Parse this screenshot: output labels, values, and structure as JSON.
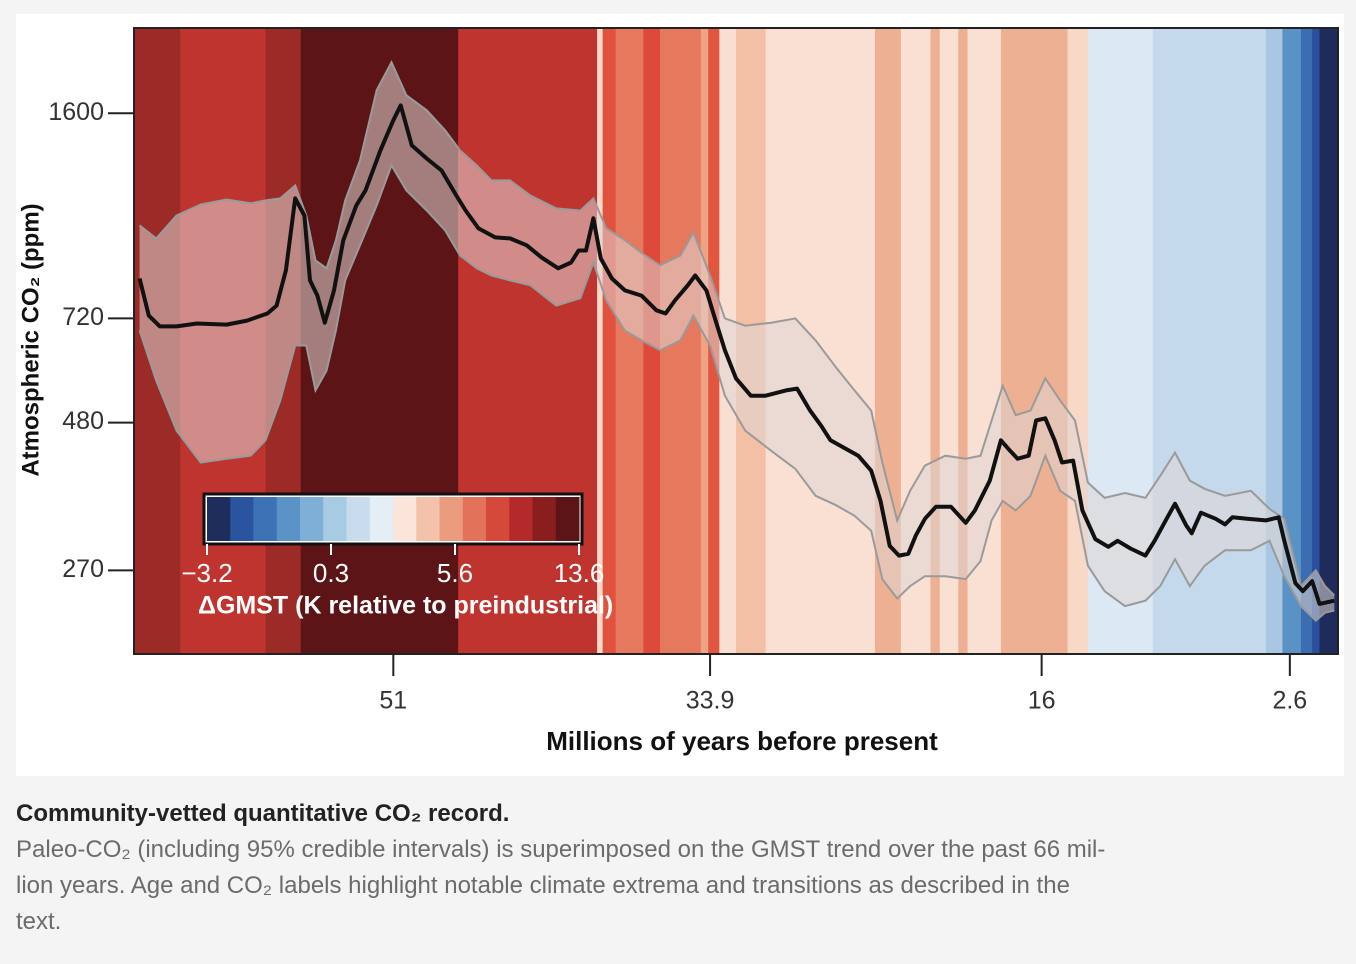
{
  "chart_data": {
    "type": "line",
    "ylabel": "Atmospheric CO₂ (ppm)",
    "xlabel": "Millions of years before present",
    "xlim": [
      65,
      0
    ],
    "xticks": [
      51,
      33.9,
      16,
      2.6
    ],
    "ylim": [
      195,
      2230
    ],
    "yticks": [
      1600,
      720,
      480,
      270
    ],
    "ylog": true,
    "color": "#111111",
    "x": [
      64.7,
      64.2,
      63.6,
      62.7,
      61.6,
      60.0,
      58.9,
      57.8,
      57.3,
      56.8,
      56.3,
      55.8,
      55.5,
      55.1,
      54.7,
      54.2,
      53.7,
      53.0,
      52.5,
      51.7,
      51.0,
      50.6,
      50.0,
      49.2,
      48.4,
      47.6,
      47.1,
      46.4,
      45.5,
      44.7,
      43.8,
      43.0,
      42.1,
      41.4,
      41.0,
      40.6,
      40.2,
      39.8,
      39.2,
      38.5,
      37.6,
      36.8,
      36.3,
      35.8,
      35.1,
      34.7,
      34.1,
      33.6,
      33.1,
      32.5,
      31.7,
      30.9,
      29.8,
      29.2,
      28.5,
      27.9,
      27.4,
      26.6,
      25.9,
      25.2,
      24.7,
      24.2,
      23.7,
      23.2,
      22.8,
      22.3,
      21.7,
      20.9,
      20.1,
      19.6,
      18.8,
      18.2,
      17.7,
      17.3,
      16.7,
      16.3,
      15.8,
      15.3,
      14.9,
      14.3,
      13.8,
      13.1,
      12.4,
      11.9,
      11.2,
      10.4,
      9.9,
      9.3,
      8.8,
      8.2,
      7.9,
      7.4,
      6.6,
      6.1,
      5.7,
      4.9,
      3.9,
      3.2,
      2.9,
      2.3,
      1.9,
      1.4,
      1.0,
      0.2
    ],
    "values": [
      841,
      728,
      698,
      698,
      706,
      703,
      714,
      734,
      757,
      868,
      1149,
      1075,
      835,
      787,
      708,
      803,
      976,
      1118,
      1185,
      1385,
      1557,
      1650,
      1412,
      1342,
      1281,
      1162,
      1096,
      1022,
      987,
      983,
      957,
      913,
      875,
      895,
      938,
      938,
      1063,
      909,
      841,
      803,
      787,
      743,
      734,
      772,
      819,
      851,
      803,
      714,
      636,
      570,
      533,
      533,
      544,
      548,
      503,
      474,
      448,
      434,
      422,
      398,
      354,
      297,
      286,
      288,
      309,
      330,
      346,
      346,
      325,
      341,
      383,
      448,
      430,
      417,
      422,
      484,
      488,
      448,
      411,
      414,
      341,
      305,
      296,
      303,
      294,
      286,
      303,
      328,
      350,
      322,
      312,
      338,
      330,
      323,
      332,
      330,
      328,
      332,
      303,
      257,
      249,
      259,
      237,
      240
    ],
    "band": {
      "fill": "rgba(222,214,212,0.55)",
      "edge": "#9a9a9a",
      "x": [
        64.7,
        63.8,
        62.7,
        61.4,
        60.0,
        58.7,
        57.9,
        57.1,
        56.3,
        55.7,
        55.2,
        54.6,
        54.1,
        53.6,
        52.8,
        51.9,
        51.1,
        50.3,
        49.2,
        48.2,
        47.4,
        46.5,
        45.7,
        44.7,
        43.6,
        42.2,
        40.9,
        40.2,
        39.5,
        38.5,
        37.4,
        36.6,
        35.5,
        34.8,
        33.9,
        33.1,
        32.0,
        30.6,
        29.3,
        28.2,
        27.1,
        26.1,
        25.2,
        24.6,
        23.8,
        23.1,
        22.3,
        21.2,
        20.1,
        19.3,
        18.7,
        18.1,
        17.4,
        16.6,
        15.8,
        15.0,
        14.2,
        13.5,
        12.6,
        11.5,
        10.4,
        9.6,
        8.8,
        8.0,
        7.2,
        6.1,
        4.7,
        3.7,
        2.9,
        2.0,
        1.2,
        0.7,
        0.2
      ],
      "upper": [
        1034,
        983,
        1075,
        1122,
        1144,
        1127,
        1140,
        1149,
        1208,
        1075,
        902,
        875,
        976,
        1140,
        1332,
        1751,
        1951,
        1717,
        1619,
        1497,
        1385,
        1306,
        1232,
        1232,
        1162,
        1105,
        1096,
        1149,
        1022,
        976,
        920,
        885,
        920,
        1006,
        851,
        720,
        700,
        708,
        720,
        661,
        595,
        544,
        503,
        411,
        328,
        368,
        406,
        422,
        417,
        422,
        484,
        554,
        494,
        503,
        570,
        523,
        484,
        380,
        358,
        365,
        358,
        390,
        427,
        383,
        371,
        361,
        368,
        343,
        330,
        254,
        270,
        254,
        245
      ],
      "lower": [
        687,
        565,
        465,
        411,
        417,
        422,
        448,
        523,
        648,
        648,
        544,
        588,
        687,
        835,
        957,
        1118,
        1306,
        1185,
        1096,
        1014,
        920,
        875,
        851,
        835,
        819,
        757,
        779,
        895,
        772,
        687,
        656,
        636,
        661,
        728,
        648,
        533,
        465,
        430,
        401,
        361,
        348,
        334,
        315,
        261,
        242,
        254,
        264,
        264,
        261,
        280,
        328,
        354,
        341,
        361,
        422,
        368,
        354,
        275,
        249,
        235,
        240,
        254,
        282,
        254,
        275,
        292,
        292,
        303,
        264,
        235,
        222,
        229,
        231
      ]
    },
    "stripes": {
      "edges": [
        65,
        62.5,
        57.9,
        56.0,
        47.5,
        40.0,
        39.7,
        39.0,
        37.5,
        36.6,
        34.4,
        34.0,
        33.4,
        32.5,
        30.9,
        25.0,
        23.6,
        22.0,
        21.5,
        20.5,
        20.0,
        18.2,
        14.6,
        13.5,
        10.0,
        3.9,
        3.0,
        2.0,
        1.4,
        1.0,
        0
      ],
      "colors": [
        "#9c2a27",
        "#c0342f",
        "#9c2a27",
        "#5c1416",
        "#c0342f",
        "#f7d8c9",
        "#e0513e",
        "#e6785d",
        "#de4a39",
        "#e6785d",
        "#f0a284",
        "#e25640",
        "#f9dfd2",
        "#f3c0a6",
        "#f9e0d3",
        "#edb092",
        "#f9e0d3",
        "#edb092",
        "#f9e0d3",
        "#edb092",
        "#f9e0d3",
        "#edb092",
        "#f8d8c6",
        "#dce8f4",
        "#c5d9ed",
        "#a9c7e3",
        "#5b92c6",
        "#3c6db0",
        "#2a509d",
        "#1f2c5b"
      ]
    },
    "colorbar": {
      "label": "ΔGMST (K relative to preindustrial)",
      "colors": [
        "#1f2d5c",
        "#2a54a0",
        "#3d73b5",
        "#5b93c6",
        "#7eafd6",
        "#a8cbe4",
        "#c8dcee",
        "#e4eef7",
        "#fbe5da",
        "#f4c2ab",
        "#ec9c7e",
        "#e2735a",
        "#d4493a",
        "#b42a2a",
        "#8a1e1e",
        "#5c1416"
      ],
      "ticks": [
        {
          "value": -3.2,
          "label": "−3.2"
        },
        0.3,
        5.6,
        13.6
      ]
    }
  },
  "caption": {
    "title": "Community-vetted quantitative CO₂ record.",
    "lines": [
      "Paleo-CO₂ (including 95% credible intervals) is superimposed on the GMST trend over the past 66 mil-",
      "lion years. Age and CO₂ labels highlight notable climate extrema and transitions as described in the",
      "text."
    ]
  }
}
